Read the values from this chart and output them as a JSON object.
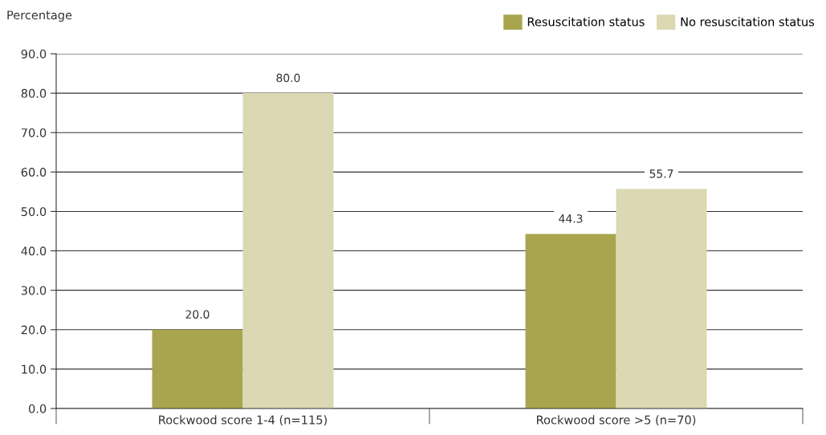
{
  "chart_data": {
    "type": "bar",
    "ylabel": "Percentage",
    "categories": [
      "Rockwood score 1-4 (n=115)",
      "Rockwood score >5 (n=70)"
    ],
    "series": [
      {
        "name": "Resuscitation status",
        "color": "#a8a54e",
        "values": [
          20.0,
          44.3
        ],
        "value_labels": [
          "20.0",
          "44.3"
        ]
      },
      {
        "name": "No resuscitation status",
        "color": "#dbd8b3",
        "values": [
          80.0,
          55.7
        ],
        "value_labels": [
          "80.0",
          "55.7"
        ]
      }
    ],
    "ylim": [
      0,
      90
    ],
    "yticks": [
      {
        "value": 0,
        "label": "0.0"
      },
      {
        "value": 10,
        "label": "10.0"
      },
      {
        "value": 20,
        "label": "20.0"
      },
      {
        "value": 30,
        "label": "30.0"
      },
      {
        "value": 40,
        "label": "40.0"
      },
      {
        "value": 50,
        "label": "50.0"
      },
      {
        "value": 60,
        "label": "60.0"
      },
      {
        "value": 70,
        "label": "70.0"
      },
      {
        "value": 80,
        "label": "80.0"
      },
      {
        "value": 90,
        "label": "90.0"
      }
    ],
    "grid": "y",
    "legend": "top right"
  }
}
